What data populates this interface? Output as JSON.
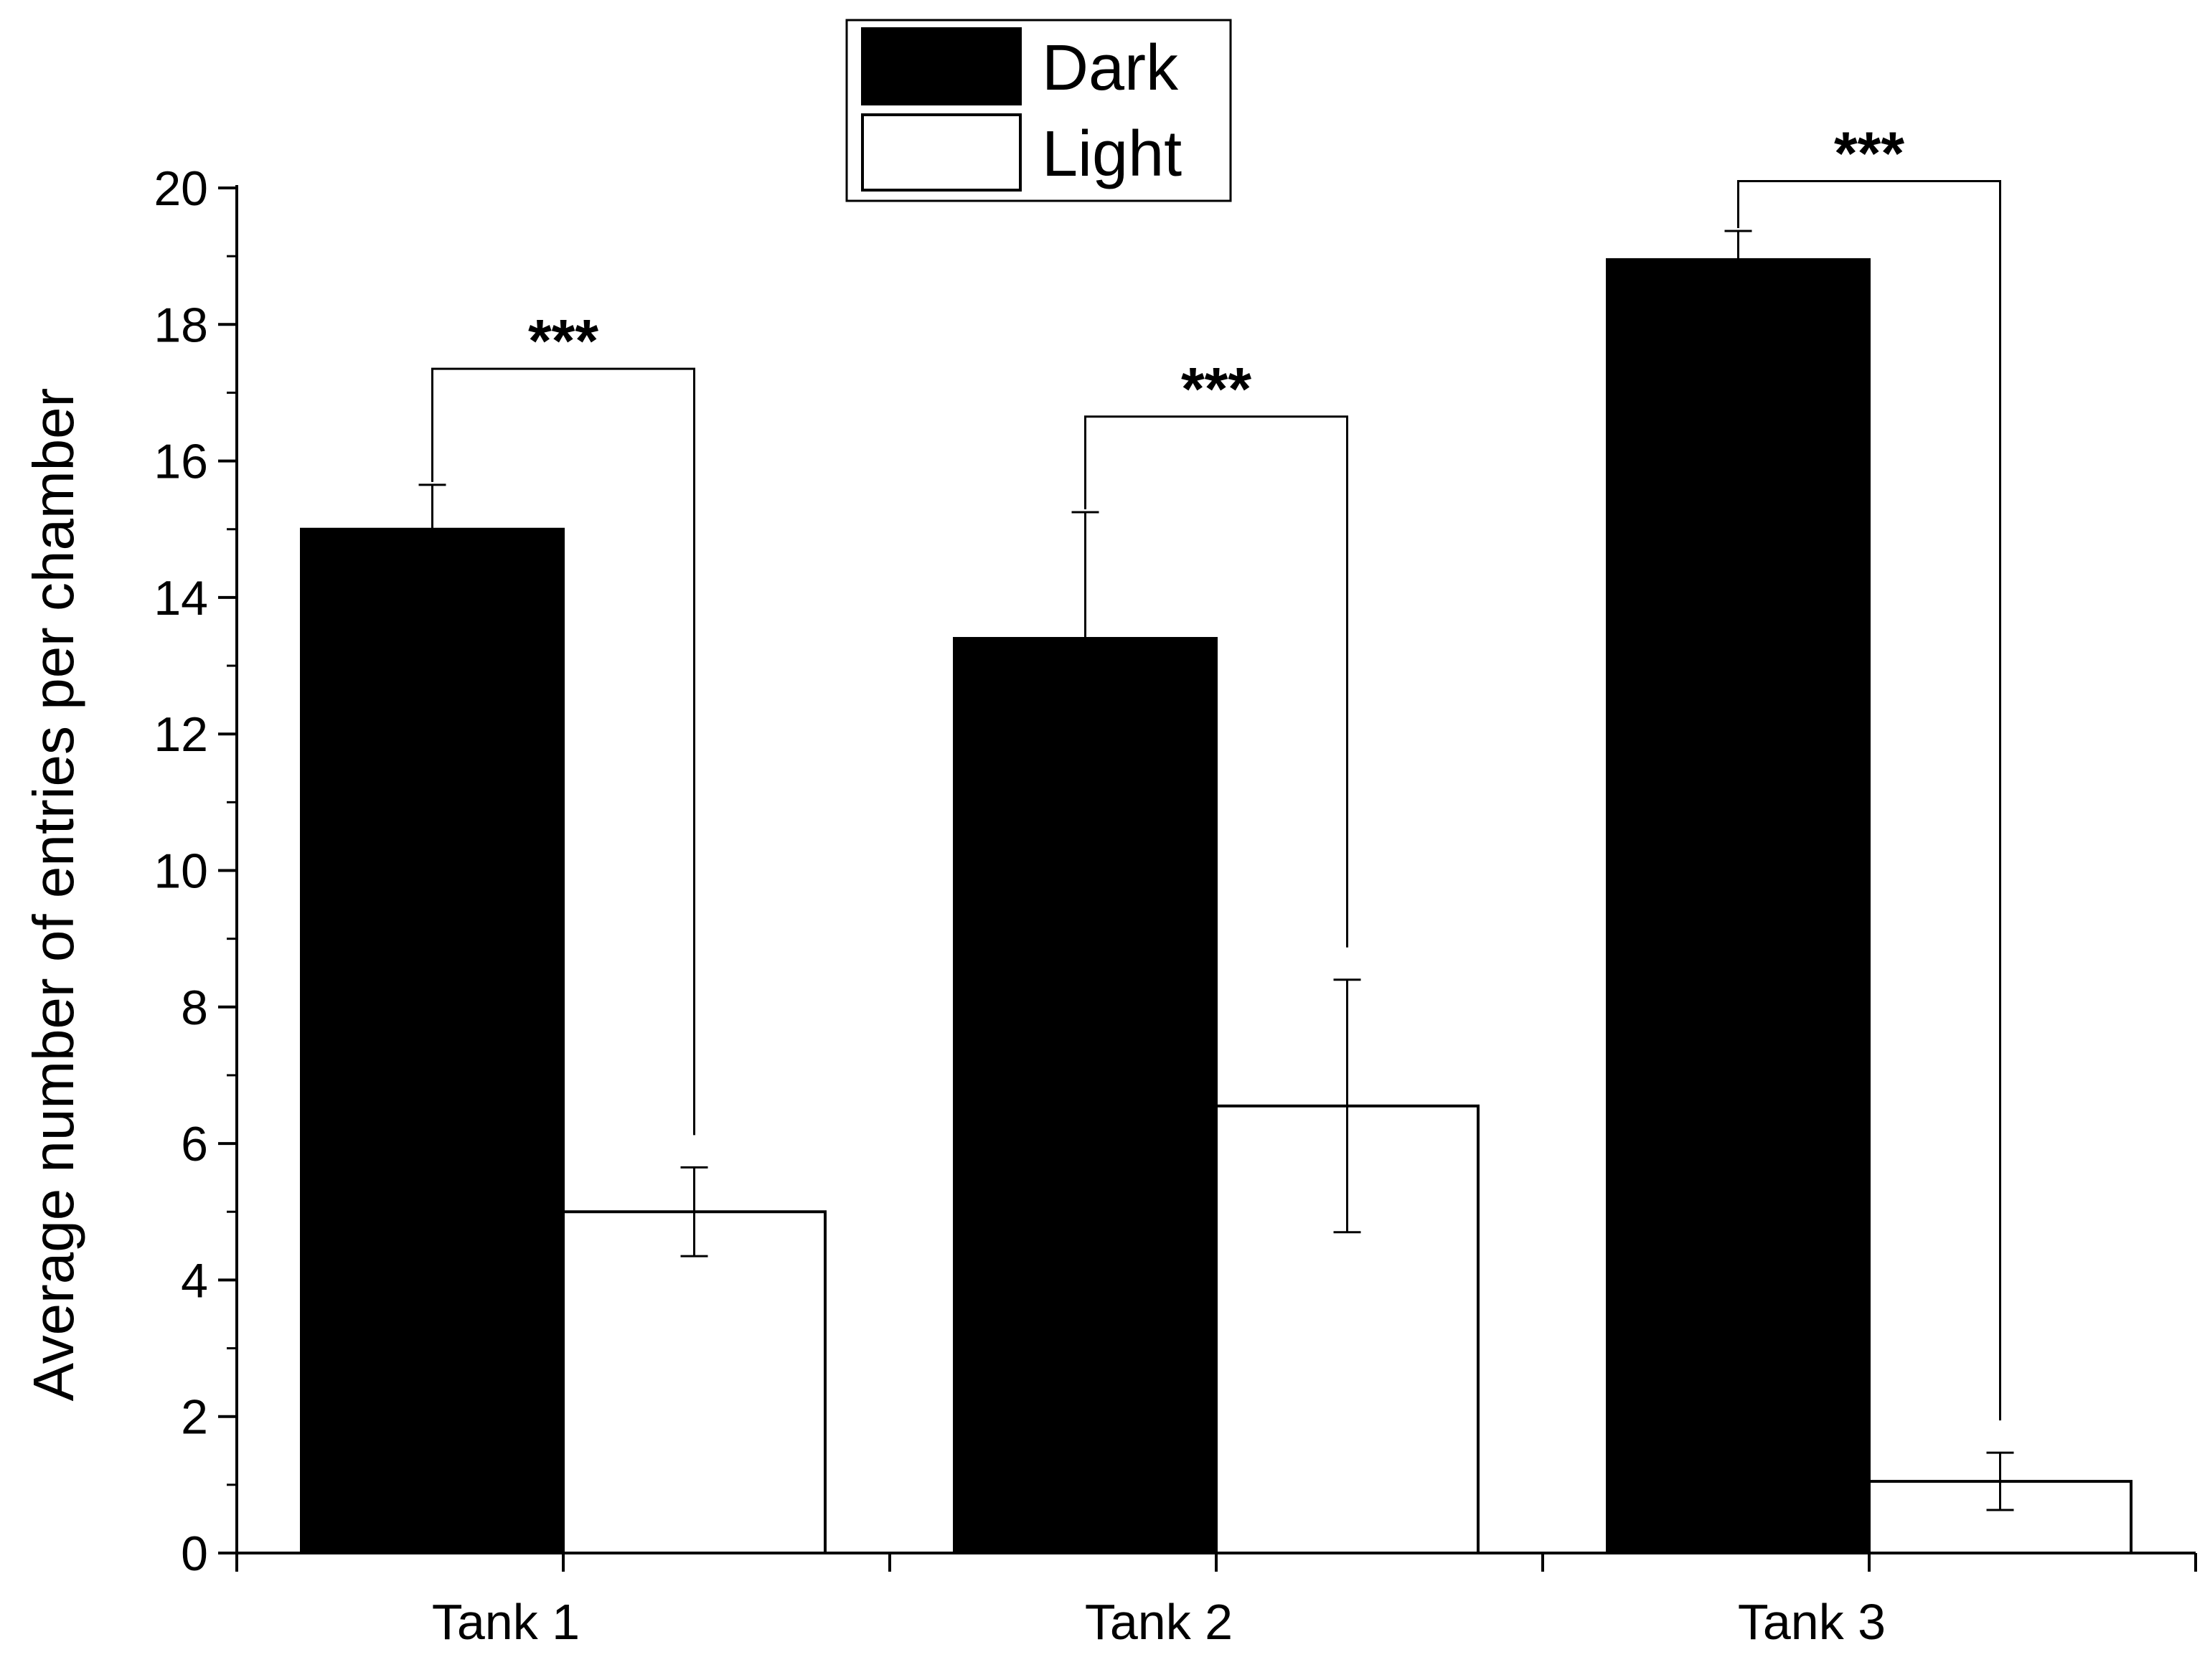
{
  "chart_data": {
    "type": "bar",
    "title": "",
    "xlabel": "",
    "ylabel": "Average number of entries per chamber",
    "ylim": [
      0,
      20
    ],
    "yticks": [
      0,
      2,
      4,
      6,
      8,
      10,
      12,
      14,
      16,
      18,
      20
    ],
    "categories": [
      "Tank 1",
      "Tank 2",
      "Tank 3"
    ],
    "series": [
      {
        "name": "Dark",
        "color": "#000000",
        "values": [
          15.0,
          13.4,
          18.95
        ],
        "errors": [
          0.65,
          1.85,
          0.42
        ]
      },
      {
        "name": "Light",
        "color": "#ffffff",
        "values": [
          5.0,
          6.55,
          1.05
        ],
        "errors": [
          0.65,
          1.85,
          0.42
        ]
      }
    ],
    "significance": [
      {
        "category": "Tank 1",
        "label": "***",
        "bracket_y": 17.35
      },
      {
        "category": "Tank 2",
        "label": "***",
        "bracket_y": 16.65
      },
      {
        "category": "Tank 3",
        "label": "***",
        "bracket_y": 20.1
      }
    ],
    "legend": {
      "position": "top-center",
      "entries": [
        "Dark",
        "Light"
      ]
    },
    "grid": false
  }
}
